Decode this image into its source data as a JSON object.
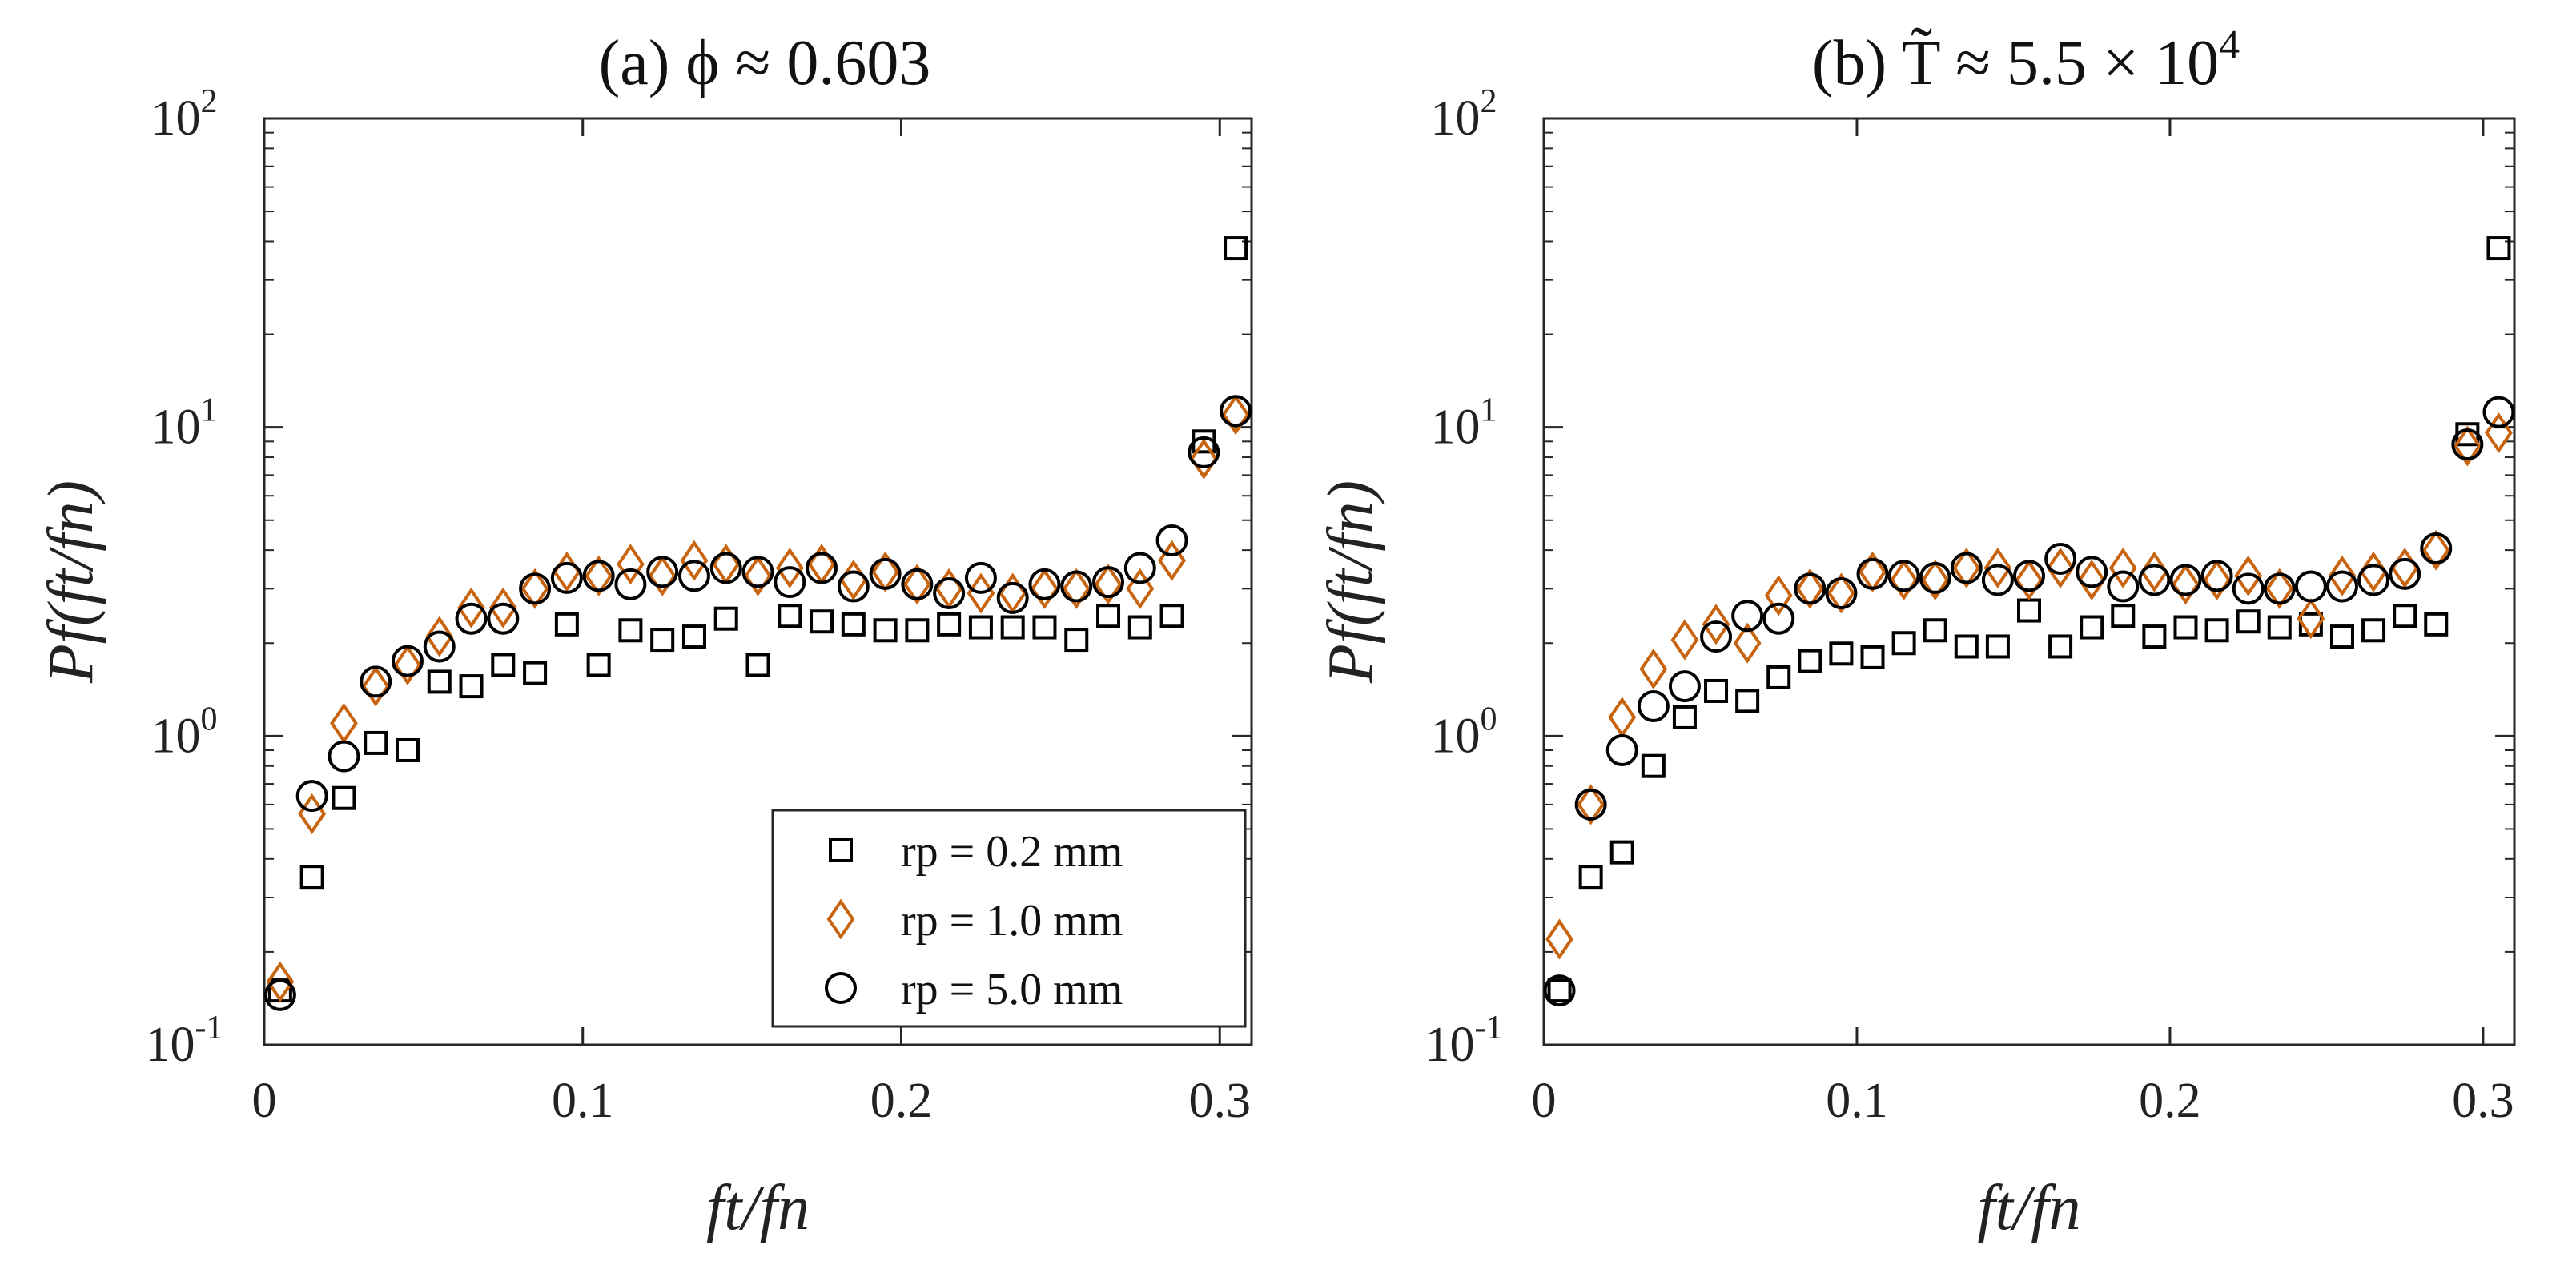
{
  "chart_data": [
    {
      "type": "scatter",
      "panel": "a",
      "title": "(a) ϕ ≈ 0.603",
      "xlabel": "ft/fn",
      "ylabel": "Pf(ft/fn)",
      "xlim": [
        0,
        0.31
      ],
      "ylim": [
        0.1,
        100
      ],
      "yscale": "log",
      "xticks": [
        0,
        0.1,
        0.2,
        0.3
      ],
      "xtick_labels": [
        "0",
        "0.1",
        "0.2",
        "0.3"
      ],
      "yticks": [
        0.1,
        1,
        10,
        100
      ],
      "ytick_labels": [
        {
          "base": "10",
          "exp": "-1"
        },
        {
          "base": "10",
          "exp": "0"
        },
        {
          "base": "10",
          "exp": "1"
        },
        {
          "base": "10",
          "exp": "2"
        }
      ],
      "legend_position": "bottom-right",
      "series": [
        {
          "name": "rp = 0.2 mm",
          "marker": "square",
          "color": "#000000",
          "x": [
            0.005,
            0.015,
            0.025,
            0.035,
            0.045,
            0.055,
            0.065,
            0.075,
            0.085,
            0.095,
            0.105,
            0.115,
            0.125,
            0.135,
            0.145,
            0.155,
            0.165,
            0.175,
            0.185,
            0.195,
            0.205,
            0.215,
            0.225,
            0.235,
            0.245,
            0.255,
            0.265,
            0.275,
            0.285,
            0.295,
            0.305
          ],
          "y": [
            0.15,
            0.35,
            0.63,
            0.95,
            0.9,
            1.5,
            1.45,
            1.7,
            1.6,
            2.3,
            1.7,
            2.2,
            2.05,
            2.1,
            2.4,
            1.7,
            2.45,
            2.35,
            2.3,
            2.2,
            2.2,
            2.3,
            2.25,
            2.25,
            2.25,
            2.05,
            2.45,
            2.25,
            2.45,
            9.0,
            38.0
          ]
        },
        {
          "name": "rp = 1.0 mm",
          "marker": "diamond",
          "color": "#c8640f",
          "x": [
            0.005,
            0.015,
            0.025,
            0.035,
            0.045,
            0.055,
            0.065,
            0.075,
            0.085,
            0.095,
            0.105,
            0.115,
            0.125,
            0.135,
            0.145,
            0.155,
            0.165,
            0.175,
            0.185,
            0.195,
            0.205,
            0.215,
            0.225,
            0.235,
            0.245,
            0.255,
            0.265,
            0.275,
            0.285,
            0.295,
            0.305
          ],
          "y": [
            0.16,
            0.56,
            1.1,
            1.45,
            1.7,
            2.1,
            2.6,
            2.6,
            3.0,
            3.4,
            3.3,
            3.6,
            3.3,
            3.7,
            3.6,
            3.3,
            3.5,
            3.6,
            3.2,
            3.4,
            3.1,
            3.0,
            2.9,
            2.9,
            3.0,
            3.0,
            3.1,
            3.0,
            3.7,
            7.9,
            11.0
          ]
        },
        {
          "name": "rp = 5.0 mm",
          "marker": "circle",
          "color": "#000000",
          "x": [
            0.005,
            0.015,
            0.025,
            0.035,
            0.045,
            0.055,
            0.065,
            0.075,
            0.085,
            0.095,
            0.105,
            0.115,
            0.125,
            0.135,
            0.145,
            0.155,
            0.165,
            0.175,
            0.185,
            0.195,
            0.205,
            0.215,
            0.225,
            0.235,
            0.245,
            0.255,
            0.265,
            0.275,
            0.285,
            0.295,
            0.305
          ],
          "y": [
            0.145,
            0.64,
            0.86,
            1.5,
            1.75,
            1.95,
            2.4,
            2.4,
            3.0,
            3.25,
            3.3,
            3.1,
            3.4,
            3.3,
            3.5,
            3.4,
            3.15,
            3.5,
            3.05,
            3.35,
            3.1,
            2.9,
            3.25,
            2.8,
            3.1,
            3.05,
            3.15,
            3.5,
            4.3,
            8.3,
            11.3
          ]
        }
      ]
    },
    {
      "type": "scatter",
      "panel": "b",
      "title": "(b) T̃ ≈ 5.5 × 10",
      "title_exp": "4",
      "xlabel": "ft/fn",
      "ylabel": "Pf(ft/fn)",
      "xlim": [
        0,
        0.31
      ],
      "ylim": [
        0.1,
        100
      ],
      "yscale": "log",
      "xticks": [
        0,
        0.1,
        0.2,
        0.3
      ],
      "xtick_labels": [
        "0",
        "0.1",
        "0.2",
        "0.3"
      ],
      "yticks": [
        0.1,
        1,
        10,
        100
      ],
      "ytick_labels": [
        {
          "base": "10",
          "exp": "-1"
        },
        {
          "base": "10",
          "exp": "0"
        },
        {
          "base": "10",
          "exp": "1"
        },
        {
          "base": "10",
          "exp": "2"
        }
      ],
      "series": [
        {
          "name": "rp = 0.2 mm",
          "marker": "square",
          "color": "#000000",
          "x": [
            0.005,
            0.015,
            0.025,
            0.035,
            0.045,
            0.055,
            0.065,
            0.075,
            0.085,
            0.095,
            0.105,
            0.115,
            0.125,
            0.135,
            0.145,
            0.155,
            0.165,
            0.175,
            0.185,
            0.195,
            0.205,
            0.215,
            0.225,
            0.235,
            0.245,
            0.255,
            0.265,
            0.275,
            0.285,
            0.295,
            0.305
          ],
          "y": [
            0.15,
            0.35,
            0.42,
            0.8,
            1.15,
            1.4,
            1.3,
            1.55,
            1.75,
            1.85,
            1.8,
            2.0,
            2.2,
            1.95,
            1.95,
            2.55,
            1.95,
            2.25,
            2.45,
            2.1,
            2.25,
            2.2,
            2.35,
            2.25,
            2.3,
            2.1,
            2.2,
            2.45,
            2.3,
            9.5,
            38.0
          ]
        },
        {
          "name": "rp = 1.0 mm",
          "marker": "diamond",
          "color": "#c8640f",
          "x": [
            0.005,
            0.015,
            0.025,
            0.035,
            0.045,
            0.055,
            0.065,
            0.075,
            0.085,
            0.095,
            0.105,
            0.115,
            0.125,
            0.135,
            0.145,
            0.155,
            0.165,
            0.175,
            0.185,
            0.195,
            0.205,
            0.215,
            0.225,
            0.235,
            0.245,
            0.255,
            0.265,
            0.275,
            0.285,
            0.295,
            0.305
          ],
          "y": [
            0.22,
            0.6,
            1.15,
            1.65,
            2.05,
            2.3,
            2.0,
            2.85,
            3.0,
            2.9,
            3.4,
            3.2,
            3.2,
            3.5,
            3.5,
            3.2,
            3.5,
            3.2,
            3.5,
            3.4,
            3.1,
            3.2,
            3.3,
            3.0,
            2.4,
            3.3,
            3.4,
            3.5,
            4.0,
            8.7,
            9.6
          ]
        },
        {
          "name": "rp = 5.0 mm",
          "marker": "circle",
          "color": "#000000",
          "x": [
            0.005,
            0.015,
            0.025,
            0.035,
            0.045,
            0.055,
            0.065,
            0.075,
            0.085,
            0.095,
            0.105,
            0.115,
            0.125,
            0.135,
            0.145,
            0.155,
            0.165,
            0.175,
            0.185,
            0.195,
            0.205,
            0.215,
            0.225,
            0.235,
            0.245,
            0.255,
            0.265,
            0.275,
            0.285,
            0.295,
            0.305
          ],
          "y": [
            0.15,
            0.6,
            0.9,
            1.25,
            1.45,
            2.1,
            2.45,
            2.4,
            3.0,
            2.9,
            3.35,
            3.3,
            3.25,
            3.5,
            3.2,
            3.3,
            3.75,
            3.4,
            3.05,
            3.2,
            3.2,
            3.3,
            3.0,
            3.0,
            3.05,
            3.05,
            3.2,
            3.35,
            4.05,
            8.8,
            11.2
          ]
        }
      ]
    }
  ]
}
